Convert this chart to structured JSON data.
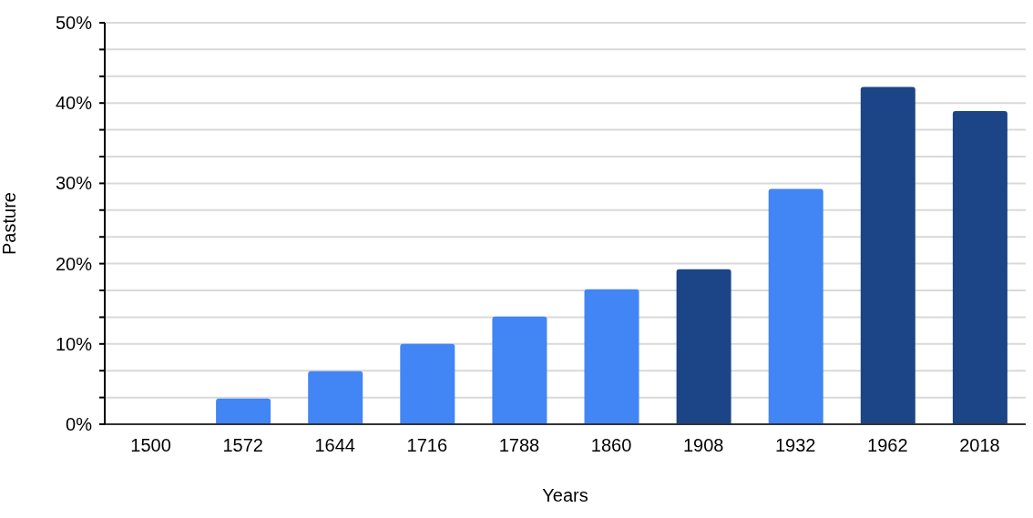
{
  "chart_data": {
    "type": "bar",
    "xlabel": "Years",
    "ylabel": "Pasture",
    "categories": [
      "1500",
      "1572",
      "1644",
      "1716",
      "1788",
      "1860",
      "1908",
      "1932",
      "1962",
      "2018"
    ],
    "values": [
      0,
      3.2,
      6.6,
      10.0,
      13.4,
      16.8,
      19.3,
      29.3,
      42.0,
      39.0
    ],
    "colors": [
      "#4285f4",
      "#4285f4",
      "#4285f4",
      "#4285f4",
      "#4285f4",
      "#4285f4",
      "#1c4587",
      "#4285f4",
      "#1c4587",
      "#1c4587"
    ],
    "ylim": [
      0,
      50
    ],
    "yticks": [
      {
        "value": 0,
        "label": "0%"
      },
      {
        "value": 3.33,
        "label": null
      },
      {
        "value": 6.67,
        "label": null
      },
      {
        "value": 10,
        "label": "10%"
      },
      {
        "value": 13.33,
        "label": null
      },
      {
        "value": 16.67,
        "label": null
      },
      {
        "value": 20,
        "label": "20%"
      },
      {
        "value": 23.33,
        "label": null
      },
      {
        "value": 26.67,
        "label": null
      },
      {
        "value": 30,
        "label": "30%"
      },
      {
        "value": 33.33,
        "label": null
      },
      {
        "value": 36.67,
        "label": null
      },
      {
        "value": 40,
        "label": "40%"
      },
      {
        "value": 43.33,
        "label": null
      },
      {
        "value": 46.67,
        "label": null
      },
      {
        "value": 50,
        "label": "50%"
      }
    ],
    "grid": "y"
  }
}
